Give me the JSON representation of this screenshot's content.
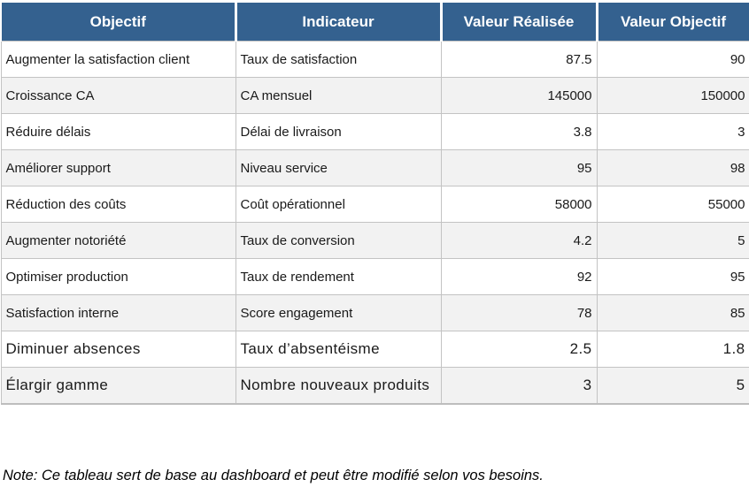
{
  "table": {
    "columns": [
      {
        "label": "Objectif"
      },
      {
        "label": "Indicateur"
      },
      {
        "label": "Valeur Réalisée"
      },
      {
        "label": "Valeur Objectif"
      }
    ],
    "rows": [
      {
        "cells": [
          "Augmenter la satisfaction client",
          "Taux de satisfaction",
          "87.5",
          "90"
        ],
        "emphasis": false
      },
      {
        "cells": [
          "Croissance CA",
          "CA mensuel",
          "145000",
          "150000"
        ],
        "emphasis": false
      },
      {
        "cells": [
          "Réduire délais",
          "Délai de livraison",
          "3.8",
          "3"
        ],
        "emphasis": false
      },
      {
        "cells": [
          "Améliorer support",
          "Niveau service",
          "95",
          "98"
        ],
        "emphasis": false
      },
      {
        "cells": [
          "Réduction des coûts",
          "Coût opérationnel",
          "58000",
          "55000"
        ],
        "emphasis": false
      },
      {
        "cells": [
          "Augmenter notoriété",
          "Taux de conversion",
          "4.2",
          "5"
        ],
        "emphasis": false
      },
      {
        "cells": [
          "Optimiser production",
          "Taux de rendement",
          "92",
          "95"
        ],
        "emphasis": false
      },
      {
        "cells": [
          "Satisfaction interne",
          "Score engagement",
          "78",
          "85"
        ],
        "emphasis": false
      },
      {
        "cells": [
          "Diminuer absences",
          "Taux d’absentéisme",
          "2.5",
          "1.8"
        ],
        "emphasis": true
      },
      {
        "cells": [
          "Élargir gamme",
          "Nombre nouveaux produits",
          "3",
          "5"
        ],
        "emphasis": true
      }
    ]
  },
  "note": "Note: Ce tableau sert de base au dashboard et peut être modifié selon vos besoins.",
  "colors": {
    "header_bg": "#34618F",
    "header_text": "#FFFFFF",
    "row_alt_bg": "#F2F2F2",
    "border": "#C3C3C3",
    "body_text": "#1A1A1A"
  }
}
